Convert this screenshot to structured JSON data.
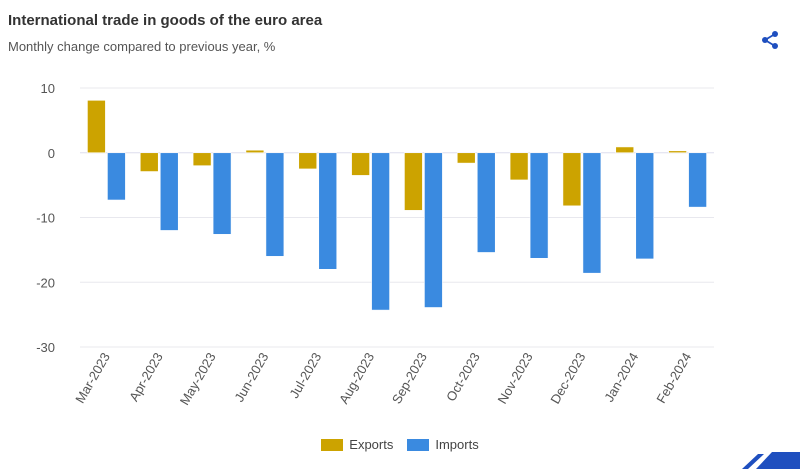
{
  "header": {
    "title": "International trade in goods of the euro area",
    "subtitle": "Monthly change compared to previous year, %",
    "share_icon": "share-icon"
  },
  "colors": {
    "exports": "#cca300",
    "imports": "#3a8ae0"
  },
  "chart_data": {
    "type": "bar",
    "title": "International trade in goods of the euro area",
    "subtitle": "Monthly change compared to previous year, %",
    "xlabel": "",
    "ylabel": "",
    "ylim": [
      -30,
      10
    ],
    "yticks": [
      10,
      0,
      -10,
      -20,
      -30
    ],
    "grid": true,
    "legend": "bottom",
    "categories": [
      "Mar-2023",
      "Apr-2023",
      "May-2023",
      "Jun-2023",
      "Jul-2023",
      "Aug-2023",
      "Sep-2023",
      "Oct-2023",
      "Nov-2023",
      "Dec-2023",
      "Jan-2024",
      "Feb-2024"
    ],
    "series": [
      {
        "name": "Exports",
        "values": [
          8.1,
          -2.9,
          -2.0,
          0.4,
          -2.5,
          -3.5,
          -8.9,
          -1.6,
          -4.2,
          -8.2,
          0.9,
          0.3
        ]
      },
      {
        "name": "Imports",
        "values": [
          -7.3,
          -12.0,
          -12.6,
          -16.0,
          -18.0,
          -24.3,
          -23.9,
          -15.4,
          -16.3,
          -18.6,
          -16.4,
          -8.4
        ]
      }
    ]
  }
}
